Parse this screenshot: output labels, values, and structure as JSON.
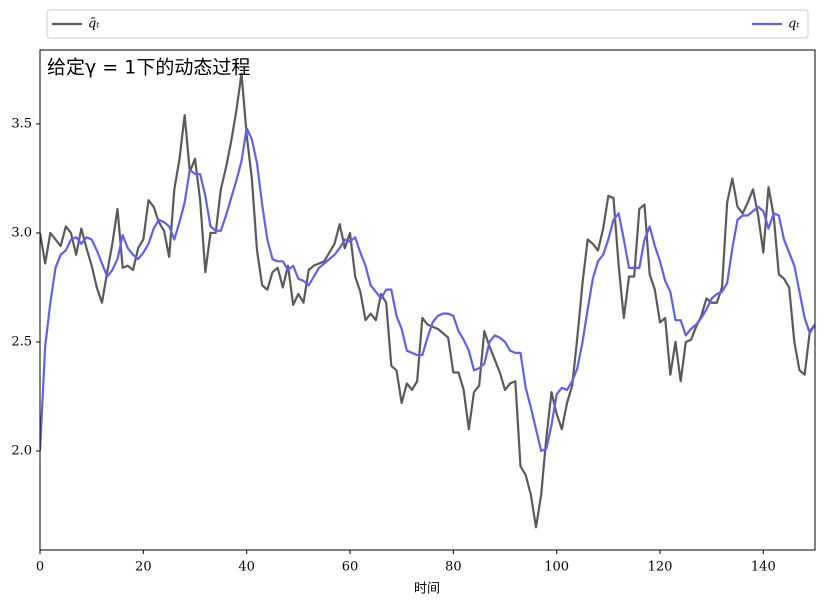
{
  "chart_data": {
    "type": "line",
    "title": "给定γ = 1下的动态过程",
    "x_label": "时间",
    "x": [
      0,
      1,
      2,
      3,
      4,
      5,
      6,
      7,
      8,
      9,
      10,
      11,
      12,
      13,
      14,
      15,
      16,
      17,
      18,
      19,
      20,
      21,
      22,
      23,
      24,
      25,
      26,
      27,
      28,
      29,
      30,
      31,
      32,
      33,
      34,
      35,
      36,
      37,
      38,
      39,
      40,
      41,
      42,
      43,
      44,
      45,
      46,
      47,
      48,
      49,
      50,
      51,
      52,
      53,
      54,
      55,
      56,
      57,
      58,
      59,
      60,
      61,
      62,
      63,
      64,
      65,
      66,
      67,
      68,
      69,
      70,
      71,
      72,
      73,
      74,
      75,
      76,
      77,
      78,
      79,
      80,
      81,
      82,
      83,
      84,
      85,
      86,
      87,
      88,
      89,
      90,
      91,
      92,
      93,
      94,
      95,
      96,
      97,
      98,
      99,
      100,
      101,
      102,
      103,
      104,
      105,
      106,
      107,
      108,
      109,
      110,
      111,
      112,
      113,
      114,
      115,
      116,
      117,
      118,
      119,
      120,
      121,
      122,
      123,
      124,
      125,
      126,
      127,
      128,
      129,
      130,
      131,
      132,
      133,
      134,
      135,
      136,
      137,
      138,
      139,
      140,
      141,
      142,
      143,
      144,
      145,
      146,
      147,
      148,
      149,
      150
    ],
    "series": [
      {
        "name": "q̄ₜ",
        "color": "#5a5a5a",
        "values": [
          3.0,
          2.86,
          3.0,
          2.97,
          2.94,
          3.03,
          3.0,
          2.9,
          3.02,
          2.93,
          2.85,
          2.75,
          2.68,
          2.82,
          2.95,
          3.11,
          2.84,
          2.85,
          2.83,
          2.93,
          2.97,
          3.15,
          3.12,
          3.05,
          3.01,
          2.89,
          3.2,
          3.34,
          3.54,
          3.28,
          3.34,
          3.15,
          2.82,
          3.0,
          3.0,
          3.2,
          3.3,
          3.42,
          3.56,
          3.73,
          3.45,
          3.25,
          2.92,
          2.76,
          2.74,
          2.82,
          2.84,
          2.75,
          2.85,
          2.67,
          2.72,
          2.68,
          2.83,
          2.85,
          2.86,
          2.87,
          2.91,
          2.95,
          3.04,
          2.93,
          3.0,
          2.8,
          2.73,
          2.6,
          2.63,
          2.6,
          2.72,
          2.68,
          2.39,
          2.37,
          2.22,
          2.31,
          2.28,
          2.32,
          2.61,
          2.58,
          2.57,
          2.56,
          2.54,
          2.52,
          2.36,
          2.36,
          2.28,
          2.1,
          2.27,
          2.3,
          2.55,
          2.48,
          2.42,
          2.36,
          2.28,
          2.31,
          2.32,
          1.93,
          1.89,
          1.8,
          1.65,
          1.8,
          2.06,
          2.27,
          2.17,
          2.1,
          2.22,
          2.3,
          2.52,
          2.77,
          2.97,
          2.95,
          2.92,
          3.02,
          3.17,
          3.16,
          2.85,
          2.61,
          2.8,
          2.8,
          3.11,
          3.13,
          2.81,
          2.74,
          2.59,
          2.61,
          2.35,
          2.5,
          2.32,
          2.5,
          2.51,
          2.57,
          2.62,
          2.7,
          2.68,
          2.68,
          2.75,
          3.14,
          3.25,
          3.12,
          3.09,
          3.14,
          3.2,
          3.08,
          2.91,
          3.21,
          3.08,
          2.81,
          2.79,
          2.75,
          2.5,
          2.37,
          2.35,
          2.55,
          2.58
        ]
      },
      {
        "name": "qₜ",
        "color": "#6060ee",
        "values": [
          2.0,
          2.48,
          2.68,
          2.84,
          2.9,
          2.92,
          2.97,
          2.98,
          2.95,
          2.98,
          2.97,
          2.92,
          2.86,
          2.8,
          2.83,
          2.88,
          2.99,
          2.93,
          2.9,
          2.88,
          2.91,
          2.95,
          3.02,
          3.06,
          3.05,
          3.03,
          2.97,
          3.05,
          3.14,
          3.29,
          3.27,
          3.27,
          3.17,
          3.03,
          3.01,
          3.01,
          3.08,
          3.16,
          3.24,
          3.33,
          3.48,
          3.43,
          3.32,
          3.13,
          2.97,
          2.88,
          2.87,
          2.87,
          2.83,
          2.85,
          2.79,
          2.78,
          2.76,
          2.8,
          2.84,
          2.86,
          2.88,
          2.9,
          2.93,
          2.97,
          2.96,
          2.98,
          2.91,
          2.85,
          2.76,
          2.73,
          2.7,
          2.74,
          2.74,
          2.62,
          2.56,
          2.46,
          2.45,
          2.44,
          2.44,
          2.52,
          2.59,
          2.62,
          2.63,
          2.63,
          2.62,
          2.55,
          2.51,
          2.46,
          2.37,
          2.38,
          2.4,
          2.5,
          2.53,
          2.52,
          2.5,
          2.46,
          2.45,
          2.45,
          2.29,
          2.2,
          2.1,
          2.0,
          2.01,
          2.12,
          2.26,
          2.29,
          2.28,
          2.32,
          2.38,
          2.5,
          2.65,
          2.79,
          2.87,
          2.9,
          2.97,
          3.06,
          3.09,
          2.97,
          2.84,
          2.84,
          2.84,
          2.97,
          3.03,
          2.94,
          2.87,
          2.78,
          2.73,
          2.6,
          2.6,
          2.53,
          2.56,
          2.58,
          2.61,
          2.65,
          2.7,
          2.72,
          2.73,
          2.77,
          2.93,
          3.06,
          3.08,
          3.08,
          3.1,
          3.12,
          3.1,
          3.02,
          3.09,
          3.08,
          2.97,
          2.91,
          2.85,
          2.73,
          2.61,
          2.54,
          2.58
        ]
      }
    ],
    "xlim": [
      0,
      150
    ],
    "xticks": [
      0,
      20,
      40,
      60,
      80,
      100,
      120,
      140
    ],
    "ylim": [
      1.546,
      3.839
    ],
    "yticks": [
      {
        "value": 2.0,
        "label": "2.0"
      },
      2.5,
      {
        "value": 3.0,
        "label": "3.0"
      },
      3.5
    ],
    "grid": false,
    "legend": "top"
  }
}
